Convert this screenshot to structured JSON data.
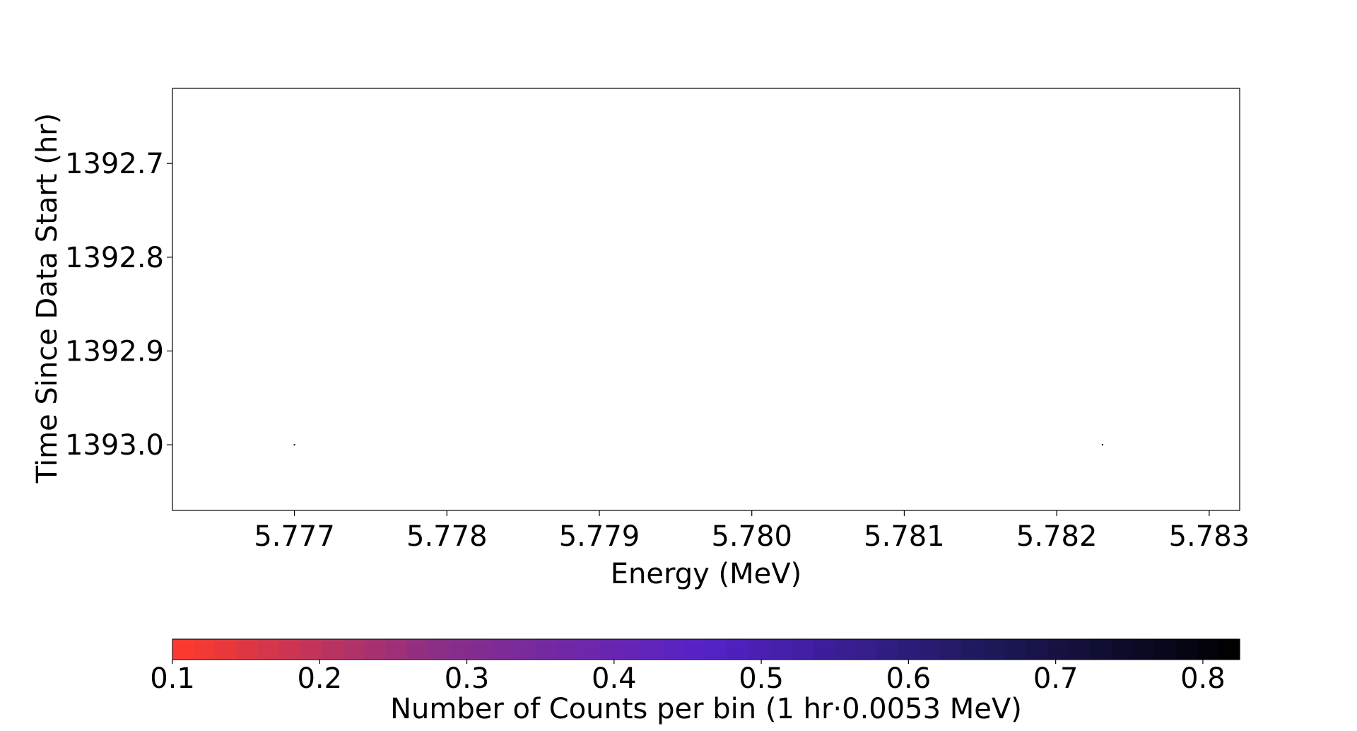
{
  "chart_data": {
    "type": "heatmap",
    "xlabel": "Energy (MeV)",
    "ylabel": "Time Since Data Start (hr)",
    "xlim": [
      5.7762,
      5.7832
    ],
    "ylim": [
      1393.07,
      1392.62
    ],
    "y_inverted": true,
    "x_ticks": [
      "5.777",
      "5.778",
      "5.779",
      "5.780",
      "5.781",
      "5.782",
      "5.783"
    ],
    "x_tick_values": [
      5.777,
      5.778,
      5.779,
      5.78,
      5.781,
      5.782,
      5.783
    ],
    "y_ticks": [
      "1392.7",
      "1392.8",
      "1392.9",
      "1393.0"
    ],
    "y_tick_values": [
      1392.7,
      1392.8,
      1392.9,
      1393.0
    ],
    "points": [
      {
        "x": 5.777,
        "y": 1393.0,
        "value": 0.82
      },
      {
        "x": 5.7823,
        "y": 1393.0,
        "value": 0.82
      }
    ],
    "grid": false,
    "colorbar": {
      "label": "Number of Counts per bin (1 hr·0.0053 MeV)",
      "orientation": "horizontal",
      "range": [
        0.1,
        0.825
      ],
      "ticks": [
        "0.1",
        "0.2",
        "0.3",
        "0.4",
        "0.5",
        "0.6",
        "0.7",
        "0.8"
      ],
      "tick_values": [
        0.1,
        0.2,
        0.3,
        0.4,
        0.5,
        0.6,
        0.7,
        0.8
      ],
      "colors": [
        "#ff3b2a",
        "#8a2e86",
        "#5522c8",
        "#1f1a60",
        "#000000"
      ]
    }
  }
}
